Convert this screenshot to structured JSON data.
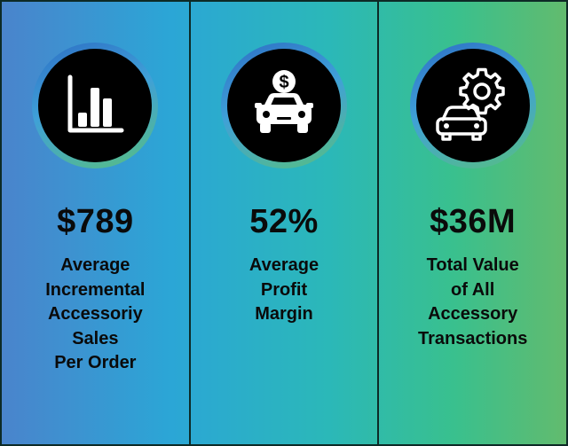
{
  "columns": [
    {
      "icon": "bar-chart-icon",
      "stat": "$789",
      "label_lines": [
        "Average",
        "Incremental",
        "Accessoriy",
        "Sales",
        "Per Order"
      ]
    },
    {
      "icon": "car-dollar-icon",
      "stat": "52%",
      "label_lines": [
        "Average",
        "Profit",
        "Margin"
      ]
    },
    {
      "icon": "car-gear-icon",
      "stat": "$36M",
      "label_lines": [
        "Total Value",
        "of All",
        "Accessory",
        "Transactions"
      ]
    }
  ],
  "colors": {
    "gradient_left": "#4a84cc",
    "gradient_right": "#62bb6e",
    "divider": "#0d2a26",
    "icon_disc": "#000000",
    "icon_stroke": "#ffffff"
  }
}
